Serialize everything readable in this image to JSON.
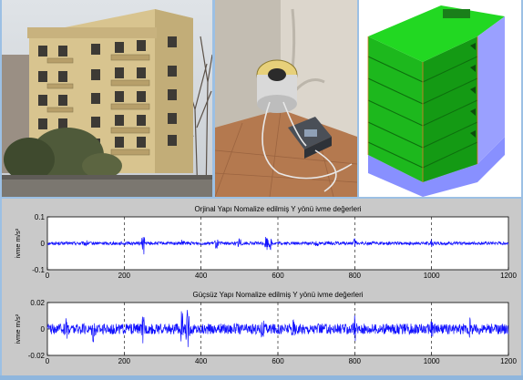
{
  "images": {
    "building_photo": "apartment-building-photo",
    "sensor_photo": "accelerometer-sensor-in-room-corner-photo",
    "model_render": "3d-structural-model-render"
  },
  "colors": {
    "signal": "#1010ff",
    "panel_bg": "#c9c9c9",
    "model_floor": "#19c419",
    "model_column": "#9aa0ff"
  },
  "chart_data": [
    {
      "type": "line",
      "title": "Orjinal Yapı Nomalize edilmiş Y yönü ivme değerleri",
      "ylabel": "ivme m/s²",
      "xlim": [
        0,
        1200
      ],
      "ylim": [
        -0.1,
        0.1
      ],
      "x_ticks": [
        "0",
        "200",
        "400",
        "600",
        "800",
        "1000",
        "1200"
      ],
      "y_ticks": [
        "0.1",
        "0",
        "-0.1"
      ],
      "grid": "vertical dashed at 200-step",
      "series": [
        {
          "noise_amplitude": 0.006,
          "spikes": [
            [
              100,
              0.01
            ],
            [
              250,
              0.045
            ],
            [
              352,
              0.012
            ],
            [
              440,
              0.02
            ],
            [
              500,
              0.028
            ],
            [
              570,
              0.032
            ],
            [
              580,
              0.022
            ],
            [
              700,
              0.01
            ],
            [
              800,
              0.015
            ],
            [
              1000,
              0.01
            ]
          ]
        }
      ]
    },
    {
      "type": "line",
      "title": "Güçsüz Yapı Nomalize edilmiş Y yönü ivme değerleri",
      "ylabel": "ivme m/s²",
      "xlim": [
        0,
        1200
      ],
      "ylim": [
        -0.02,
        0.02
      ],
      "x_ticks": [
        "0",
        "200",
        "400",
        "600",
        "800",
        "1000",
        "1200"
      ],
      "y_ticks": [
        "0.02",
        "0",
        "-0.02"
      ],
      "grid": "vertical dashed at 200-step",
      "series": [
        {
          "noise_amplitude": 0.004,
          "spikes": [
            [
              50,
              0.009
            ],
            [
              120,
              0.008
            ],
            [
              250,
              0.009
            ],
            [
              350,
              0.012
            ],
            [
              365,
              0.014
            ],
            [
              560,
              0.006
            ],
            [
              640,
              0.005
            ],
            [
              800,
              0.007
            ],
            [
              1000,
              0.006
            ],
            [
              1100,
              0.005
            ]
          ]
        }
      ]
    }
  ]
}
